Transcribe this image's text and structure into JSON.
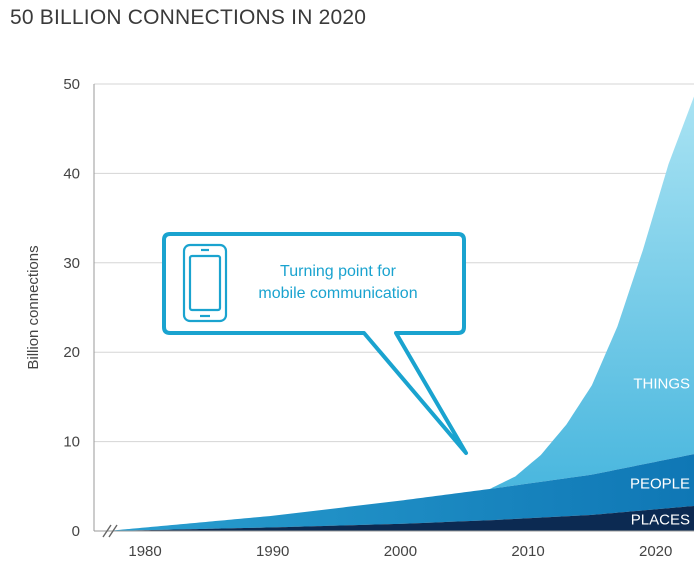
{
  "chart_data": {
    "type": "area",
    "title": "50 BILLION CONNECTIONS IN 2020",
    "ylabel": "Billion connections",
    "xlabel": "",
    "xlim": [
      1976,
      2023
    ],
    "ylim": [
      0,
      50
    ],
    "x_ticks": [
      "1980",
      "1990",
      "2000",
      "2010",
      "2020"
    ],
    "y_ticks": [
      "0",
      "10",
      "20",
      "30",
      "40",
      "50"
    ],
    "stacked": true,
    "series": [
      {
        "name": "PLACES",
        "color": "#0c2a52",
        "x": [
          1977,
          1990,
          2000,
          2007,
          2015,
          2023
        ],
        "y": [
          0,
          0.4,
          0.8,
          1.2,
          1.8,
          2.8
        ]
      },
      {
        "name": "PEOPLE",
        "color": "#1b86bd",
        "x": [
          1977,
          1990,
          2000,
          2007,
          2015,
          2023
        ],
        "y": [
          0,
          1.3,
          2.6,
          3.5,
          4.5,
          5.8
        ]
      },
      {
        "name": "THINGS",
        "color": "#72cde6",
        "x": [
          1977,
          2005,
          2007,
          2009,
          2011,
          2013,
          2015,
          2017,
          2019,
          2021,
          2023
        ],
        "y": [
          0,
          0,
          0,
          1.0,
          3.0,
          6.0,
          10.0,
          16.0,
          24.0,
          33.0,
          40.0
        ]
      }
    ],
    "callout": {
      "text_lines": [
        "Turning point for",
        "mobile communication"
      ],
      "points_to": {
        "x": 2006,
        "y": 8.5
      }
    },
    "axis_break": true,
    "colors": {
      "callout": "#1aa3cf",
      "grid": "#d5d5d5",
      "axis": "#999999"
    }
  }
}
